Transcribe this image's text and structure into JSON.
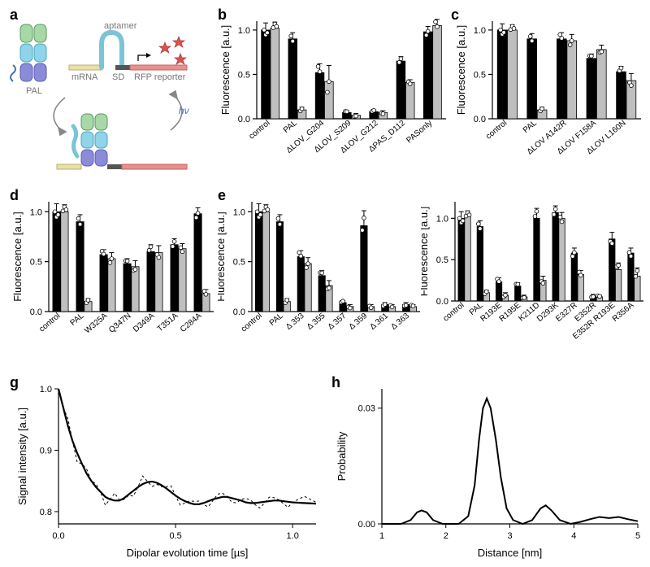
{
  "colors": {
    "bar_dark": "#000000",
    "bar_light": "#bfbfbf",
    "bar_outline": "#000000",
    "axis": "#000000",
    "tick": "#000000",
    "text": "#000000",
    "marker_fill": "#ffffff",
    "schematic_green": "#a8d8a8",
    "schematic_cyan": "#8fd4e8",
    "schematic_blue": "#8a8cd8",
    "schematic_rna": "#456fb5",
    "schematic_mrna": "#e8e0a8",
    "schematic_sd": "#555555",
    "schematic_rfp": "#e89090",
    "schematic_star": "#d9534f",
    "schematic_arrow": "#888888"
  },
  "typography": {
    "panel_label_fontsize": 18,
    "axis_label_fontsize": 13,
    "tick_label_fontsize": 11,
    "xcat_fontsize": 10
  },
  "panel_a": {
    "label": "a",
    "labels": {
      "PAL": "PAL",
      "aptamer": "aptamer",
      "mRNA": "mRNA",
      "SD": "SD",
      "RFP": "RFP reporter",
      "hv": "hν"
    }
  },
  "panel_b": {
    "label": "b",
    "ylabel": "Fluorescence [a.u.]",
    "ylim": [
      0,
      1.1
    ],
    "yticks": [
      0,
      0.5,
      1.0
    ],
    "categories": [
      "control",
      "PAL",
      "ΔLOV_G204",
      "ΔLOV_S209",
      "ΔLOV_G212",
      "ΔPAS_D112",
      "PASonly"
    ],
    "series": [
      {
        "name": "dark",
        "color": "#000000",
        "values": [
          1.0,
          0.9,
          0.52,
          0.07,
          0.08,
          0.65,
          0.98
        ]
      },
      {
        "name": "light",
        "color": "#bfbfbf",
        "values": [
          1.02,
          0.1,
          0.42,
          0.04,
          0.07,
          0.41,
          1.05
        ]
      }
    ],
    "error": [
      [
        0.08,
        0.07,
        0.1,
        0.02,
        0.02,
        0.05,
        0.06
      ],
      [
        0.07,
        0.03,
        0.18,
        0.02,
        0.02,
        0.03,
        0.07
      ]
    ],
    "markers": [
      [
        1.05,
        0.93,
        0.95,
        0.88
      ],
      [
        0.95,
        0.13,
        0.5,
        0.6,
        0.07,
        0.05
      ]
    ]
  },
  "panel_c": {
    "label": "c",
    "ylabel": "Fluorescence [a.u.]",
    "ylim": [
      0,
      1.1
    ],
    "yticks": [
      0,
      0.5,
      1.0
    ],
    "categories": [
      "control",
      "PAL",
      "ΔLOV A142R",
      "ΔLOV F158A",
      "ΔLOV L160N"
    ],
    "series": [
      {
        "name": "dark",
        "color": "#000000",
        "values": [
          1.0,
          0.9,
          0.9,
          0.68,
          0.53
        ]
      },
      {
        "name": "light",
        "color": "#bfbfbf",
        "values": [
          1.0,
          0.1,
          0.88,
          0.78,
          0.43
        ]
      }
    ],
    "error": [
      [
        0.07,
        0.06,
        0.07,
        0.05,
        0.06
      ],
      [
        0.06,
        0.03,
        0.07,
        0.05,
        0.08
      ]
    ]
  },
  "panel_d": {
    "label": "d",
    "ylabel": "Fluorescence [a.u.]",
    "ylim": [
      0,
      1.1
    ],
    "yticks": [
      0,
      0.5,
      1.0
    ],
    "categories": [
      "control",
      "PAL",
      "W325A",
      "Q347N",
      "D349A",
      "T351A",
      "C284A"
    ],
    "series": [
      {
        "name": "dark",
        "color": "#000000",
        "values": [
          1.0,
          0.9,
          0.57,
          0.48,
          0.6,
          0.67,
          0.98
        ]
      },
      {
        "name": "light",
        "color": "#bfbfbf",
        "values": [
          1.0,
          0.1,
          0.53,
          0.45,
          0.59,
          0.63,
          0.18
        ]
      }
    ],
    "error": [
      [
        0.08,
        0.07,
        0.05,
        0.05,
        0.07,
        0.06,
        0.06
      ],
      [
        0.07,
        0.03,
        0.06,
        0.06,
        0.07,
        0.05,
        0.04
      ]
    ]
  },
  "panel_e": {
    "label": "e",
    "ylabel": "Fluorescence [a.u.]",
    "ylim": [
      0,
      1.1
    ],
    "yticks": [
      0,
      0.5,
      1.0
    ],
    "categories": [
      "control",
      "PAL",
      "Δ 353",
      "Δ 355",
      "Δ 357",
      "Δ 359",
      "Δ 361",
      "Δ 363"
    ],
    "series": [
      {
        "name": "dark",
        "color": "#000000",
        "values": [
          1.0,
          0.9,
          0.55,
          0.36,
          0.09,
          0.86,
          0.07,
          0.07
        ]
      },
      {
        "name": "light",
        "color": "#bfbfbf",
        "values": [
          1.0,
          0.1,
          0.48,
          0.26,
          0.05,
          0.05,
          0.05,
          0.05
        ]
      }
    ],
    "error": [
      [
        0.08,
        0.07,
        0.06,
        0.05,
        0.02,
        0.15,
        0.02,
        0.02
      ],
      [
        0.07,
        0.03,
        0.06,
        0.05,
        0.02,
        0.02,
        0.02,
        0.02
      ]
    ]
  },
  "panel_f": {
    "label": "",
    "ylabel": "Fluorescence [a.u.]",
    "ylim": [
      0,
      1.2
    ],
    "yticks": [
      0,
      0.5,
      1.0
    ],
    "categories": [
      "control",
      "PAL",
      "R193E",
      "R195E",
      "K211D",
      "D293K",
      "E327R",
      "E352R",
      "E352R R193E",
      "R356A"
    ],
    "series": [
      {
        "name": "dark",
        "color": "#000000",
        "values": [
          1.0,
          0.9,
          0.23,
          0.18,
          1.0,
          1.07,
          0.58,
          0.06,
          0.75,
          0.58
        ]
      },
      {
        "name": "light",
        "color": "#bfbfbf",
        "values": [
          1.02,
          0.1,
          0.07,
          0.05,
          0.25,
          1.0,
          0.32,
          0.05,
          0.38,
          0.3
        ]
      }
    ],
    "error": [
      [
        0.08,
        0.07,
        0.05,
        0.04,
        0.12,
        0.08,
        0.06,
        0.02,
        0.08,
        0.06
      ],
      [
        0.07,
        0.03,
        0.03,
        0.02,
        0.05,
        0.07,
        0.05,
        0.02,
        0.08,
        0.1
      ]
    ]
  },
  "panel_g": {
    "label": "g",
    "xlabel": "Dipolar evolution time [µs]",
    "ylabel": "Signal intensity [a.u.]",
    "xlim": [
      0.0,
      1.1
    ],
    "ylim": [
      0.78,
      1.0
    ],
    "xticks": [
      0.0,
      0.5,
      1.0
    ],
    "yticks": [
      0.8,
      0.9,
      1.0
    ],
    "line_color": "#000000",
    "noise_color": "#000000",
    "fit": [
      [
        0.0,
        1.0
      ],
      [
        0.02,
        0.97
      ],
      [
        0.04,
        0.94
      ],
      [
        0.06,
        0.915
      ],
      [
        0.08,
        0.895
      ],
      [
        0.1,
        0.878
      ],
      [
        0.12,
        0.862
      ],
      [
        0.14,
        0.85
      ],
      [
        0.16,
        0.84
      ],
      [
        0.18,
        0.832
      ],
      [
        0.2,
        0.824
      ],
      [
        0.22,
        0.82
      ],
      [
        0.24,
        0.818
      ],
      [
        0.26,
        0.818
      ],
      [
        0.28,
        0.822
      ],
      [
        0.3,
        0.828
      ],
      [
        0.32,
        0.834
      ],
      [
        0.34,
        0.84
      ],
      [
        0.36,
        0.845
      ],
      [
        0.38,
        0.848
      ],
      [
        0.4,
        0.849
      ],
      [
        0.42,
        0.847
      ],
      [
        0.44,
        0.843
      ],
      [
        0.46,
        0.838
      ],
      [
        0.48,
        0.832
      ],
      [
        0.5,
        0.826
      ],
      [
        0.52,
        0.821
      ],
      [
        0.54,
        0.817
      ],
      [
        0.56,
        0.814
      ],
      [
        0.58,
        0.812
      ],
      [
        0.6,
        0.812
      ],
      [
        0.62,
        0.814
      ],
      [
        0.64,
        0.817
      ],
      [
        0.66,
        0.82
      ],
      [
        0.68,
        0.822
      ],
      [
        0.7,
        0.824
      ],
      [
        0.72,
        0.824
      ],
      [
        0.74,
        0.822
      ],
      [
        0.76,
        0.82
      ],
      [
        0.78,
        0.818
      ],
      [
        0.8,
        0.815
      ],
      [
        0.82,
        0.814
      ],
      [
        0.84,
        0.814
      ],
      [
        0.86,
        0.815
      ],
      [
        0.88,
        0.816
      ],
      [
        0.9,
        0.817
      ],
      [
        0.92,
        0.818
      ],
      [
        0.94,
        0.818
      ],
      [
        0.96,
        0.817
      ],
      [
        0.98,
        0.816
      ],
      [
        1.0,
        0.815
      ],
      [
        1.05,
        0.814
      ],
      [
        1.1,
        0.813
      ]
    ],
    "noise_amp": 0.015
  },
  "panel_h": {
    "label": "h",
    "xlabel": "Distance [nm]",
    "ylabel": "Probability",
    "xlim": [
      1.0,
      5.0
    ],
    "ylim": [
      0.0,
      0.035
    ],
    "xticks": [
      1,
      2,
      3,
      4,
      5
    ],
    "yticks": [
      0.0,
      0.03
    ],
    "line_color": "#000000",
    "curve": [
      [
        1.0,
        0.0
      ],
      [
        1.3,
        0.0
      ],
      [
        1.45,
        0.001
      ],
      [
        1.55,
        0.003
      ],
      [
        1.62,
        0.0035
      ],
      [
        1.7,
        0.003
      ],
      [
        1.8,
        0.001
      ],
      [
        1.95,
        0.0
      ],
      [
        2.2,
        0.0
      ],
      [
        2.35,
        0.002
      ],
      [
        2.45,
        0.01
      ],
      [
        2.52,
        0.022
      ],
      [
        2.58,
        0.03
      ],
      [
        2.64,
        0.0325
      ],
      [
        2.7,
        0.03
      ],
      [
        2.78,
        0.022
      ],
      [
        2.86,
        0.012
      ],
      [
        2.95,
        0.004
      ],
      [
        3.05,
        0.001
      ],
      [
        3.2,
        0.0
      ],
      [
        3.35,
        0.001
      ],
      [
        3.48,
        0.004
      ],
      [
        3.56,
        0.0048
      ],
      [
        3.65,
        0.0035
      ],
      [
        3.78,
        0.001
      ],
      [
        3.95,
        0.0
      ],
      [
        4.1,
        0.0005
      ],
      [
        4.25,
        0.0012
      ],
      [
        4.4,
        0.0018
      ],
      [
        4.55,
        0.0015
      ],
      [
        4.7,
        0.0018
      ],
      [
        4.85,
        0.0012
      ],
      [
        5.0,
        0.0007
      ]
    ]
  }
}
